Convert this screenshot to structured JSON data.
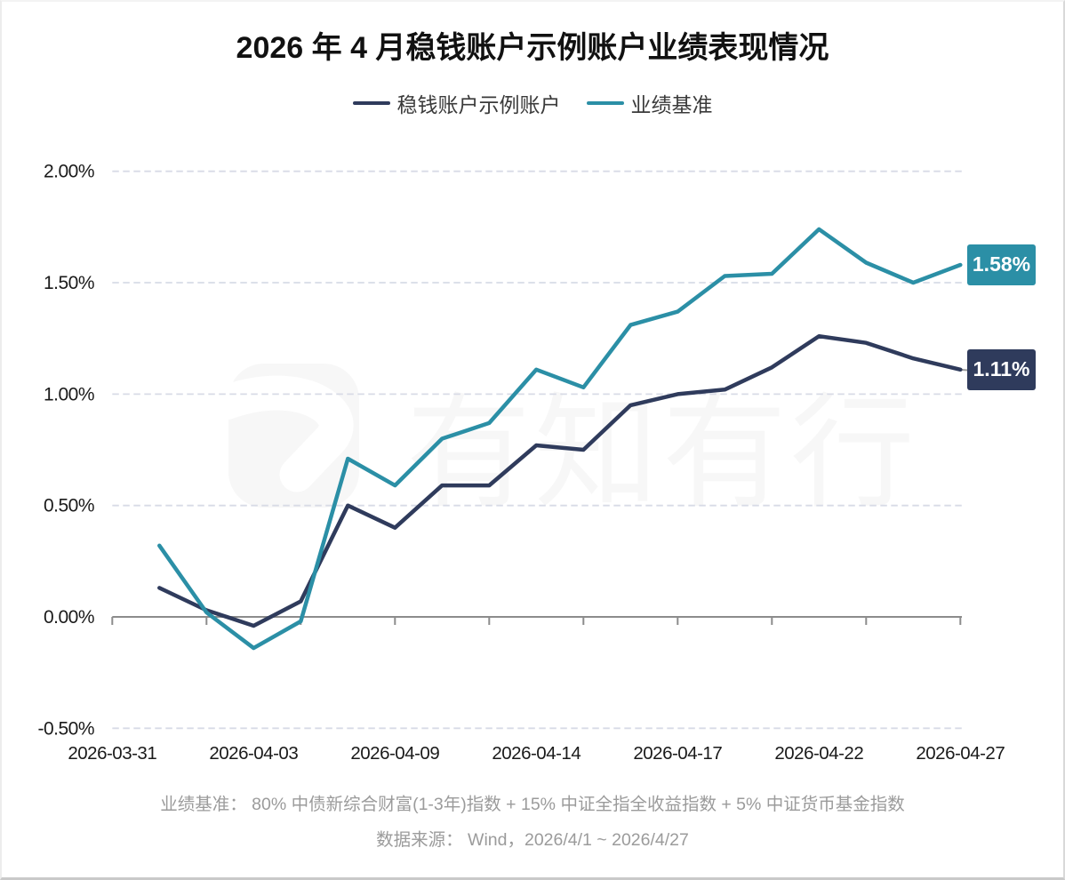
{
  "title": "2026 年 4 月稳钱账户示例账户业绩表现情况",
  "legend": [
    {
      "label": "稳钱账户示例账户",
      "color": "#2F3B5C"
    },
    {
      "label": "业绩基准",
      "color": "#2B8FA6"
    }
  ],
  "chart_data": {
    "type": "line",
    "categories": [
      "2026-03-31",
      "2026-04-01",
      "2026-04-02",
      "2026-04-03",
      "2026-04-07",
      "2026-04-08",
      "2026-04-09",
      "2026-04-10",
      "2026-04-13",
      "2026-04-14",
      "2026-04-15",
      "2026-04-16",
      "2026-04-17",
      "2026-04-20",
      "2026-04-21",
      "2026-04-22",
      "2026-04-23",
      "2026-04-24",
      "2026-04-27"
    ],
    "x_tick_label_indices": [
      0,
      3,
      6,
      9,
      12,
      15,
      18
    ],
    "series": [
      {
        "name": "稳钱账户示例账户",
        "color": "#2F3B5C",
        "values": [
          null,
          0.13,
          0.03,
          -0.04,
          0.07,
          0.5,
          0.4,
          0.59,
          0.59,
          0.77,
          0.75,
          0.95,
          1.0,
          1.02,
          1.12,
          1.26,
          1.23,
          1.16,
          1.11
        ],
        "end_label": "1.11%"
      },
      {
        "name": "业绩基准",
        "color": "#2B8FA6",
        "values": [
          null,
          0.32,
          0.02,
          -0.14,
          -0.02,
          0.71,
          0.59,
          0.8,
          0.87,
          1.11,
          1.03,
          1.31,
          1.37,
          1.53,
          1.54,
          1.74,
          1.59,
          1.5,
          1.58
        ],
        "end_label": "1.58%"
      }
    ],
    "ylabel": "",
    "xlabel": "",
    "ylim": [
      -0.5,
      2.0
    ],
    "y_ticks": [
      {
        "value": 2.0,
        "label": "2.00%"
      },
      {
        "value": 1.5,
        "label": "1.50%"
      },
      {
        "value": 1.0,
        "label": "1.00%"
      },
      {
        "value": 0.5,
        "label": "0.50%"
      },
      {
        "value": 0.0,
        "label": "0.00%"
      },
      {
        "value": -0.5,
        "label": "-0.50%"
      }
    ],
    "grid": "horizontal dashed",
    "legend_position": "top"
  },
  "watermark": {
    "text": "有知有行"
  },
  "footnotes": [
    "业绩基准： 80% 中债新综合财富(1-3年)指数 + 15% 中证全指全收益指数 + 5% 中证货币基金指数",
    "数据来源： Wind，2026/4/1 ~ 2026/4/27"
  ]
}
